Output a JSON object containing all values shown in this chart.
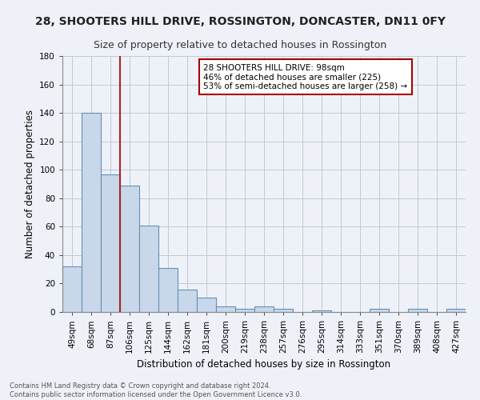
{
  "title": "28, SHOOTERS HILL DRIVE, ROSSINGTON, DONCASTER, DN11 0FY",
  "subtitle": "Size of property relative to detached houses in Rossington",
  "xlabel": "Distribution of detached houses by size in Rossington",
  "ylabel": "Number of detached properties",
  "categories": [
    "49sqm",
    "68sqm",
    "87sqm",
    "106sqm",
    "125sqm",
    "144sqm",
    "162sqm",
    "181sqm",
    "200sqm",
    "219sqm",
    "238sqm",
    "257sqm",
    "276sqm",
    "295sqm",
    "314sqm",
    "333sqm",
    "351sqm",
    "370sqm",
    "389sqm",
    "408sqm",
    "427sqm"
  ],
  "values": [
    32,
    140,
    97,
    89,
    61,
    31,
    16,
    10,
    4,
    2,
    4,
    2,
    0,
    1,
    0,
    0,
    2,
    0,
    2,
    0,
    2
  ],
  "bar_color": "#c8d8ea",
  "bar_edge_color": "#6090b8",
  "red_line_x": 2.5,
  "annotation_text": "28 SHOOTERS HILL DRIVE: 98sqm\n46% of detached houses are smaller (225)\n53% of semi-detached houses are larger (258) →",
  "annotation_box_color": "#ffffff",
  "annotation_box_edge": "#aa0000",
  "ylim": [
    0,
    180
  ],
  "yticks": [
    0,
    20,
    40,
    60,
    80,
    100,
    120,
    140,
    160,
    180
  ],
  "title_fontsize": 10,
  "subtitle_fontsize": 9,
  "xlabel_fontsize": 8.5,
  "ylabel_fontsize": 8.5,
  "tick_fontsize": 7.5,
  "footnote": "Contains HM Land Registry data © Crown copyright and database right 2024.\nContains public sector information licensed under the Open Government Licence v3.0.",
  "background_color": "#eef2f8",
  "plot_background": "#eef2f8",
  "grid_color": "#c0c8d8"
}
